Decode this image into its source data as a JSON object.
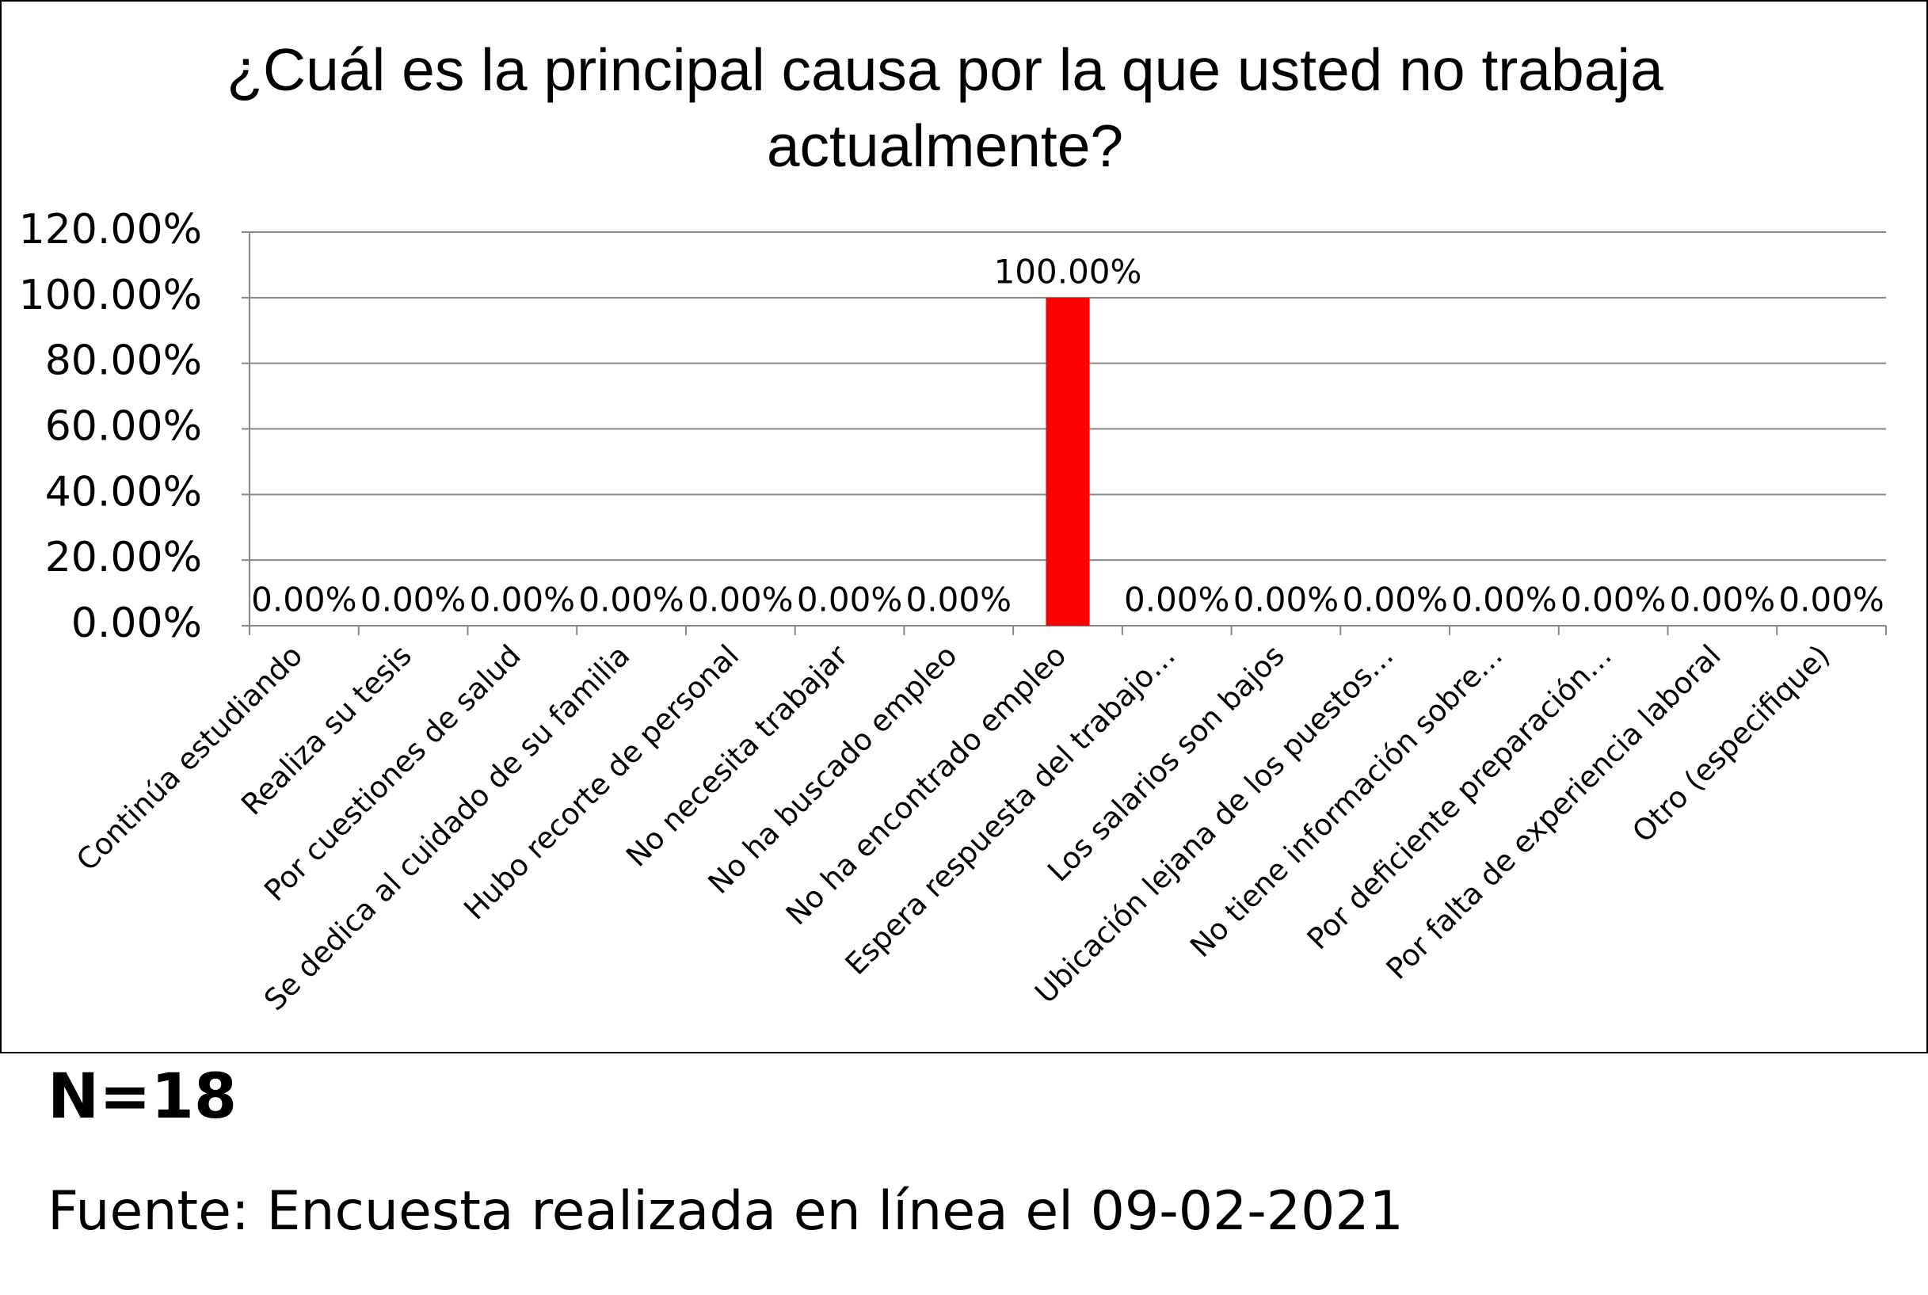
{
  "chart_data": {
    "type": "bar",
    "title": "¿Cuál es la principal causa por la que usted no trabaja actualmente?",
    "categories": [
      "Continúa estudiando",
      "Realiza su tesis",
      "Por cuestiones de salud",
      "Se dedica al cuidado de su familia",
      "Hubo recorte de personal",
      "No necesita trabajar",
      "No ha buscado empleo",
      "No ha encontrado empleo",
      "Espera respuesta del trabajo…",
      "Los salarios son bajos",
      "Ubicación lejana de los puestos…",
      "No tiene información sobre…",
      "Por deficiente preparación…",
      "Por falta de experiencia laboral",
      "Otro (especifique)"
    ],
    "values": [
      0,
      0,
      0,
      0,
      0,
      0,
      0,
      100,
      0,
      0,
      0,
      0,
      0,
      0,
      0
    ],
    "value_labels": [
      "0.00%",
      "0.00%",
      "0.00%",
      "0.00%",
      "0.00%",
      "0.00%",
      "0.00%",
      "100.00%",
      "0.00%",
      "0.00%",
      "0.00%",
      "0.00%",
      "0.00%",
      "0.00%",
      "0.00%"
    ],
    "color": "#ff0000",
    "ylim": [
      0,
      120
    ],
    "yticks": [
      {
        "value": 0,
        "label": "0.00%"
      },
      {
        "value": 20,
        "label": "20.00%"
      },
      {
        "value": 40,
        "label": "40.00%"
      },
      {
        "value": 60,
        "label": "60.00%"
      },
      {
        "value": 80,
        "label": "80.00%"
      },
      {
        "value": 100,
        "label": "100.00%"
      },
      {
        "value": 120,
        "label": "120.00%"
      }
    ],
    "grid": true
  },
  "sample_size": "N=18",
  "source": "Fuente: Encuesta realizada en línea el 09-02-2021"
}
